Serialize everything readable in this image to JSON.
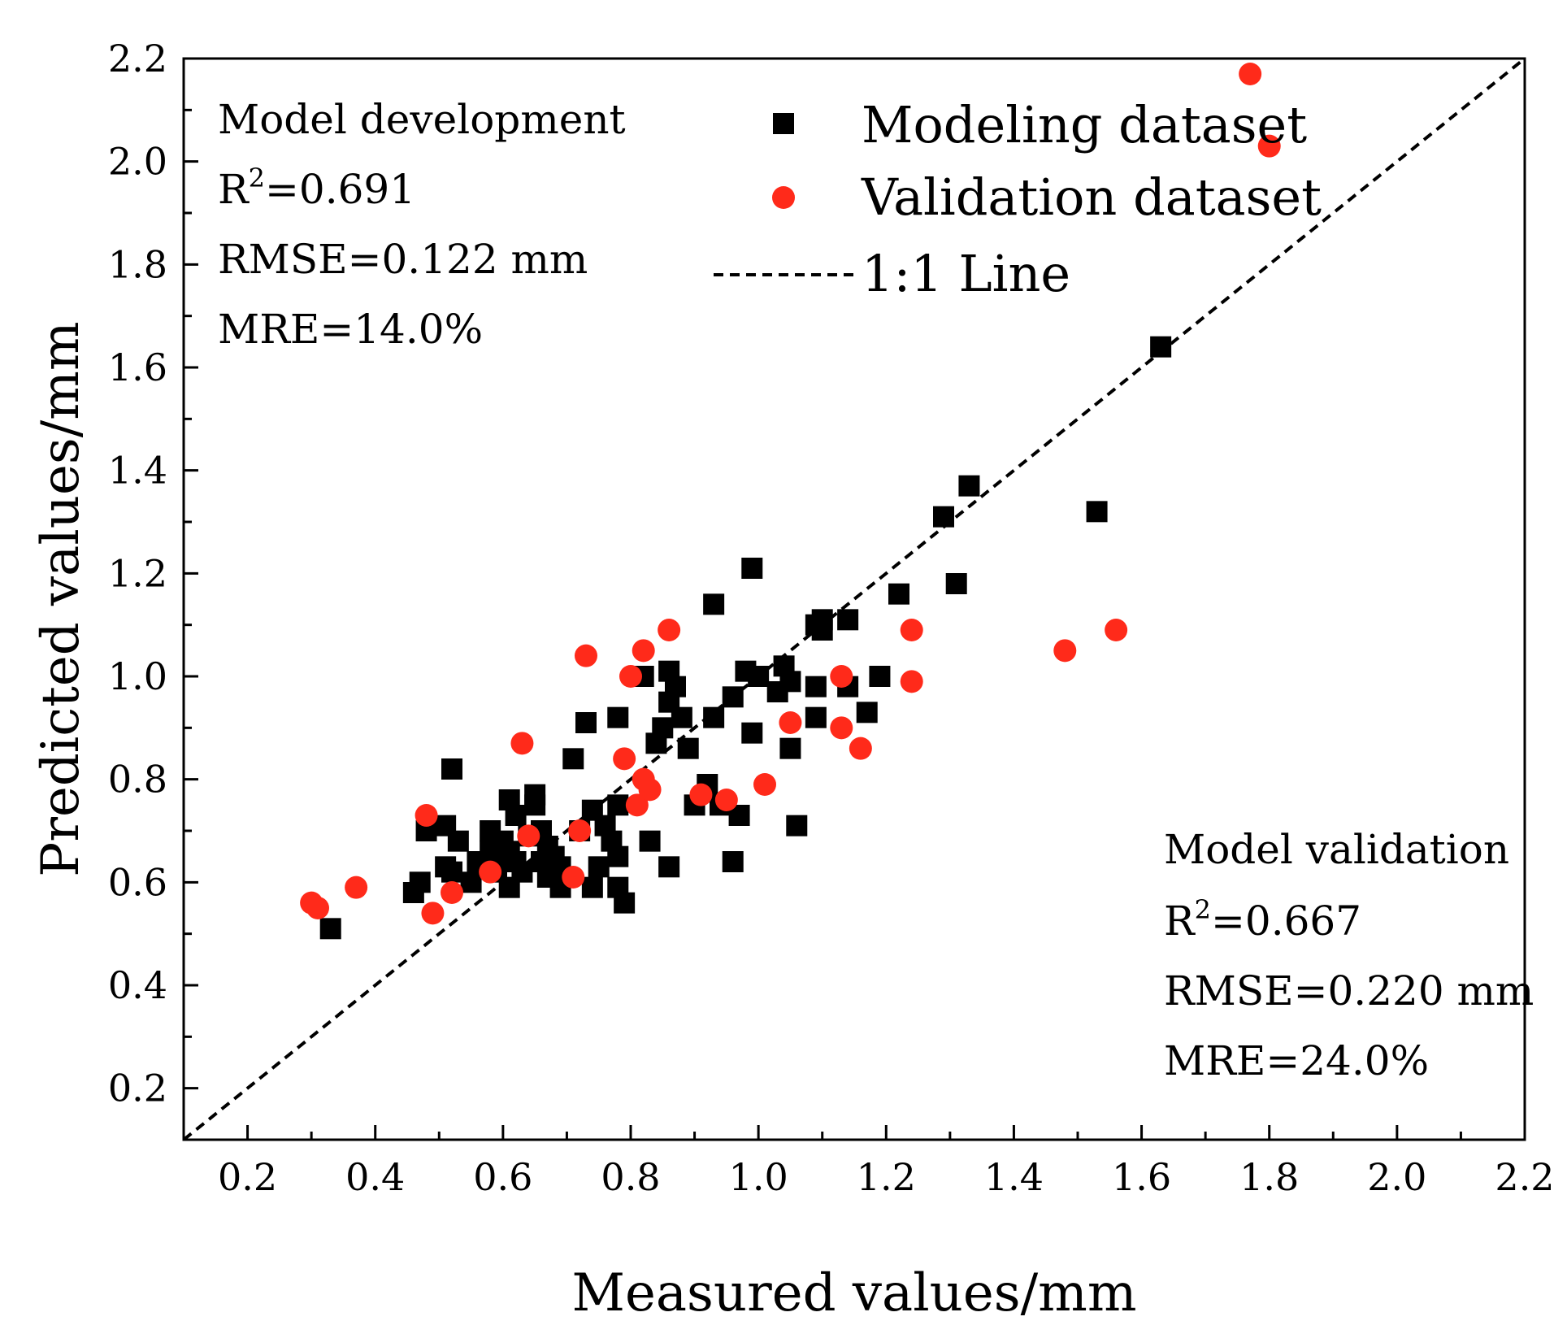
{
  "chart_data": {
    "type": "scatter",
    "title": "",
    "xlabel": "Measured values/mm",
    "ylabel": "Predicted values/mm",
    "xlim": [
      0.1,
      2.2
    ],
    "ylim": [
      0.1,
      2.2
    ],
    "xticks": [
      "0.2",
      "0.4",
      "0.6",
      "0.8",
      "1.0",
      "1.2",
      "1.4",
      "1.6",
      "1.8",
      "2.0",
      "2.2"
    ],
    "yticks": [
      "0.2",
      "0.4",
      "0.6",
      "0.8",
      "1.0",
      "1.2",
      "1.4",
      "1.6",
      "1.8",
      "2.0",
      "2.2"
    ],
    "legend": {
      "placement": "top-center",
      "entries": [
        {
          "label": "Modeling dataset",
          "marker": "square",
          "color": "#000000"
        },
        {
          "label": "Validation dataset",
          "marker": "circle",
          "color": "#ff2a1a"
        },
        {
          "label": "1:1 Line",
          "marker": "dashed-line",
          "color": "#000000"
        }
      ]
    },
    "stats_development": {
      "title": "Model development",
      "r2_label": "R",
      "r2_sup": "2",
      "r2_value": "=0.691",
      "rmse": "RMSE=0.122 mm",
      "mre": "MRE=14.0%"
    },
    "stats_validation": {
      "title": "Model validation",
      "r2_label": "R",
      "r2_sup": "2",
      "r2_value": "=0.667",
      "rmse": "RMSE=0.220 mm",
      "mre": "MRE=24.0%"
    },
    "reference_line": {
      "x": [
        0.1,
        2.2
      ],
      "y": [
        0.1,
        2.2
      ]
    },
    "series": [
      {
        "name": "Modeling dataset",
        "marker": "square",
        "color": "#000000",
        "points": [
          [
            0.33,
            0.51
          ],
          [
            0.46,
            0.58
          ],
          [
            0.47,
            0.6
          ],
          [
            0.48,
            0.7
          ],
          [
            0.51,
            0.71
          ],
          [
            0.51,
            0.63
          ],
          [
            0.52,
            0.82
          ],
          [
            0.52,
            0.62
          ],
          [
            0.53,
            0.68
          ],
          [
            0.55,
            0.6
          ],
          [
            0.56,
            0.64
          ],
          [
            0.58,
            0.7
          ],
          [
            0.58,
            0.66
          ],
          [
            0.59,
            0.62
          ],
          [
            0.6,
            0.68
          ],
          [
            0.61,
            0.76
          ],
          [
            0.61,
            0.66
          ],
          [
            0.61,
            0.59
          ],
          [
            0.62,
            0.73
          ],
          [
            0.62,
            0.64
          ],
          [
            0.63,
            0.62
          ],
          [
            0.64,
            0.69
          ],
          [
            0.65,
            0.77
          ],
          [
            0.65,
            0.75
          ],
          [
            0.66,
            0.7
          ],
          [
            0.66,
            0.64
          ],
          [
            0.67,
            0.67
          ],
          [
            0.67,
            0.61
          ],
          [
            0.68,
            0.65
          ],
          [
            0.69,
            0.59
          ],
          [
            0.69,
            0.63
          ],
          [
            0.71,
            0.84
          ],
          [
            0.72,
            0.7
          ],
          [
            0.73,
            0.91
          ],
          [
            0.74,
            0.74
          ],
          [
            0.74,
            0.59
          ],
          [
            0.75,
            0.63
          ],
          [
            0.76,
            0.71
          ],
          [
            0.77,
            0.68
          ],
          [
            0.78,
            0.92
          ],
          [
            0.78,
            0.75
          ],
          [
            0.78,
            0.59
          ],
          [
            0.78,
            0.65
          ],
          [
            0.79,
            0.56
          ],
          [
            0.82,
            1.0
          ],
          [
            0.83,
            0.68
          ],
          [
            0.84,
            0.87
          ],
          [
            0.85,
            0.9
          ],
          [
            0.86,
            0.95
          ],
          [
            0.86,
            1.01
          ],
          [
            0.86,
            0.63
          ],
          [
            0.87,
            0.98
          ],
          [
            0.88,
            0.92
          ],
          [
            0.89,
            0.86
          ],
          [
            0.9,
            0.75
          ],
          [
            0.92,
            0.79
          ],
          [
            0.93,
            1.14
          ],
          [
            0.93,
            0.92
          ],
          [
            0.94,
            0.75
          ],
          [
            0.96,
            0.96
          ],
          [
            0.96,
            0.64
          ],
          [
            0.97,
            0.73
          ],
          [
            0.98,
            1.01
          ],
          [
            0.99,
            1.21
          ],
          [
            0.99,
            0.89
          ],
          [
            1.0,
            1.0
          ],
          [
            1.03,
            0.97
          ],
          [
            1.04,
            1.02
          ],
          [
            1.05,
            0.99
          ],
          [
            1.05,
            0.86
          ],
          [
            1.06,
            0.71
          ],
          [
            1.09,
            1.1
          ],
          [
            1.09,
            0.98
          ],
          [
            1.09,
            0.92
          ],
          [
            1.1,
            1.11
          ],
          [
            1.1,
            1.09
          ],
          [
            1.14,
            1.11
          ],
          [
            1.14,
            0.98
          ],
          [
            1.17,
            0.93
          ],
          [
            1.19,
            1.0
          ],
          [
            1.22,
            1.16
          ],
          [
            1.29,
            1.31
          ],
          [
            1.31,
            1.18
          ],
          [
            1.33,
            1.37
          ],
          [
            1.53,
            1.32
          ],
          [
            1.63,
            1.64
          ]
        ]
      },
      {
        "name": "Validation dataset",
        "marker": "circle",
        "color": "#ff2a1a",
        "points": [
          [
            0.3,
            0.56
          ],
          [
            0.31,
            0.55
          ],
          [
            0.37,
            0.59
          ],
          [
            0.48,
            0.73
          ],
          [
            0.49,
            0.54
          ],
          [
            0.52,
            0.58
          ],
          [
            0.58,
            0.62
          ],
          [
            0.63,
            0.87
          ],
          [
            0.64,
            0.69
          ],
          [
            0.71,
            0.61
          ],
          [
            0.72,
            0.7
          ],
          [
            0.73,
            1.04
          ],
          [
            0.79,
            0.84
          ],
          [
            0.8,
            1.0
          ],
          [
            0.81,
            0.75
          ],
          [
            0.82,
            1.05
          ],
          [
            0.82,
            0.8
          ],
          [
            0.83,
            0.78
          ],
          [
            0.86,
            1.09
          ],
          [
            0.91,
            0.77
          ],
          [
            0.95,
            0.76
          ],
          [
            1.01,
            0.79
          ],
          [
            1.05,
            0.91
          ],
          [
            1.13,
            1.0
          ],
          [
            1.13,
            0.9
          ],
          [
            1.16,
            0.86
          ],
          [
            1.24,
            1.09
          ],
          [
            1.24,
            0.99
          ],
          [
            1.48,
            1.05
          ],
          [
            1.56,
            1.09
          ],
          [
            1.77,
            2.17
          ],
          [
            1.8,
            2.03
          ]
        ]
      }
    ]
  }
}
